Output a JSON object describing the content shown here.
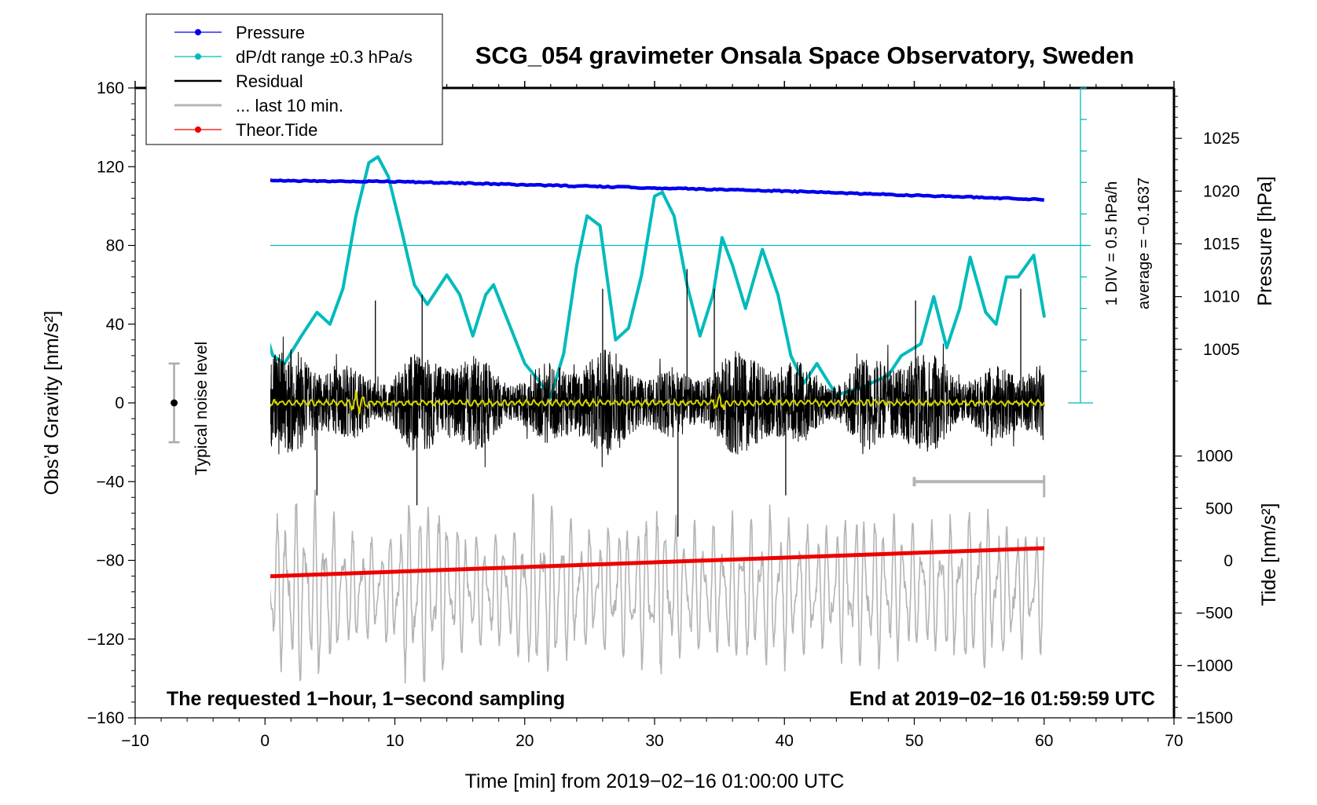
{
  "chart_data": {
    "type": "line",
    "title": "SCG_054 gravimeter Onsala Space Observatory, Sweden",
    "xlabel": "Time [min] from 2019−02−16 01:00:00 UTC",
    "ylabel_left": "Obs’d Gravity [nm/s²]",
    "ylabel_pressure": "Pressure [hPa]",
    "ylabel_tide": "Tide [nm/s²]",
    "xlim": [
      -10,
      70
    ],
    "ylim": [
      -160,
      160
    ],
    "xticks": [
      "−10",
      "0",
      "10",
      "20",
      "30",
      "40",
      "50",
      "60",
      "70"
    ],
    "yticks_left": [
      "160",
      "120",
      "80",
      "40",
      "0",
      "−40",
      "−80",
      "−120",
      "−160"
    ],
    "pressure_axis": {
      "ticks": [
        "1025",
        "1020",
        "1015",
        "1010",
        "1005"
      ],
      "values": [
        1025,
        1020,
        1015,
        1010,
        1005
      ],
      "map_hpa": [
        1005,
        1025
      ],
      "map_gravity": [
        27.2,
        134.4
      ]
    },
    "tide_axis": {
      "ticks": [
        "1000",
        "500",
        "0",
        "−500",
        "−1000",
        "−1500"
      ],
      "values": [
        1000,
        500,
        0,
        -500,
        -1000,
        -1500
      ],
      "map_tide": [
        -1500,
        1000
      ],
      "map_gravity": [
        -160,
        -27
      ]
    },
    "legend": {
      "placement": "top-left",
      "entries": [
        {
          "label": "Pressure",
          "color": "#0000ee",
          "marker": true
        },
        {
          "label": "dP/dt range ±0.3 hPa/s",
          "color": "#00bbbb",
          "marker": true
        },
        {
          "label": "Residual",
          "color": "#000000",
          "marker": false
        },
        {
          "label": "... last 10 min.",
          "color": "#b4b4b4",
          "marker": false
        },
        {
          "label": "Theor.Tide",
          "color": "#ee0000",
          "marker": true
        }
      ]
    },
    "annotations": {
      "noise_label": "Typical noise level",
      "noise_range": [
        -20,
        20
      ],
      "noise_x": -7,
      "div_label": "1 DIV = 0.5 hPa/h",
      "avg_label": "average = −0.1637",
      "bottom_left": "The requested 1−hour, 1−second sampling",
      "bottom_right": "End at 2019−02−16 01:59:59 UTC"
    },
    "series": [
      {
        "name": "Pressure",
        "color": "#0000ee",
        "axis": "pressure",
        "x": [
          0,
          10,
          20,
          30,
          40,
          50,
          60
        ],
        "values": [
          1021.0,
          1020.9,
          1020.6,
          1020.3,
          1020.0,
          1019.6,
          1019.2
        ]
      },
      {
        "name": "dP/dt",
        "color": "#00bbbb",
        "axis": "gravity",
        "x": [
          0,
          0.6,
          1.5,
          2.8,
          4,
          5,
          6,
          7,
          8,
          8.7,
          9.5,
          10.5,
          11.5,
          12.5,
          14,
          15,
          16,
          17,
          17.6,
          18.5,
          20,
          21,
          22,
          23,
          24,
          24.8,
          25.8,
          27,
          28,
          29,
          30,
          30.6,
          31.5,
          32.5,
          33.5,
          34.5,
          35.2,
          36,
          37,
          38.3,
          39.5,
          40.5,
          41.5,
          42.5,
          44,
          46,
          48,
          49,
          50.5,
          51.5,
          52.5,
          53.5,
          54.3,
          55.5,
          56.3,
          57.1,
          58,
          59.2,
          60
        ],
        "values": [
          37,
          24,
          20,
          34,
          46,
          40,
          58,
          95,
          122,
          125,
          115,
          88,
          60,
          50,
          65,
          55,
          34,
          55,
          60,
          45,
          20,
          12,
          3,
          25,
          70,
          95,
          90,
          32,
          38,
          65,
          105,
          107,
          95,
          60,
          34,
          55,
          84,
          70,
          48,
          78,
          55,
          24,
          10,
          20,
          4,
          8,
          14,
          24,
          30,
          54,
          28,
          48,
          74,
          46,
          40,
          64,
          64,
          75,
          44
        ]
      },
      {
        "name": "Theor.Tide",
        "color": "#ee0000",
        "axis": "tide",
        "x": [
          0,
          60
        ],
        "values": [
          -150,
          120
        ]
      },
      {
        "name": "Residual",
        "color": "#000000",
        "axis": "gravity",
        "x_range": [
          0,
          60
        ],
        "amplitude": 28,
        "peaks": [
          [
            4.0,
            -47
          ],
          [
            8.5,
            52
          ],
          [
            11.7,
            -52
          ],
          [
            12.1,
            55
          ],
          [
            26.0,
            58
          ],
          [
            31.8,
            -68
          ],
          [
            32.5,
            68
          ],
          [
            34.6,
            58
          ],
          [
            40.1,
            -47
          ],
          [
            50.1,
            52
          ],
          [
            58.2,
            58
          ]
        ]
      },
      {
        "name": "Residual filtered",
        "color": "#d4d400",
        "axis": "gravity",
        "x_range": [
          0,
          60
        ],
        "amplitude": 1.5
      },
      {
        "name": "... last 10 min.",
        "color": "#b4b4b4",
        "axis": "gravity",
        "x_range": [
          0,
          60
        ],
        "center": -95,
        "amplitude": 35,
        "marker_segment": {
          "x": [
            50,
            60
          ],
          "y": -40
        }
      }
    ]
  }
}
